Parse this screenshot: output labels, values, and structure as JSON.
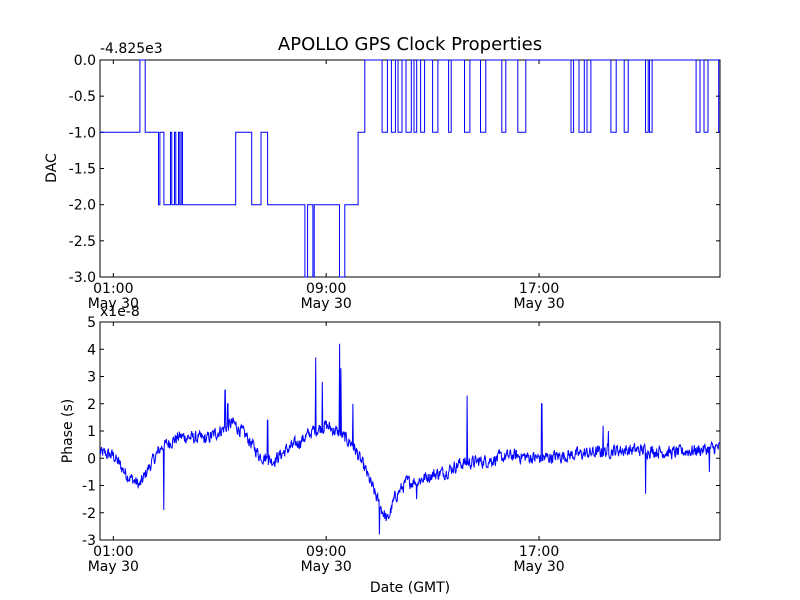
{
  "title": "APOLLO GPS Clock Properties",
  "chart_data": [
    {
      "type": "line",
      "color": "#0000ff",
      "ylabel": "DAC",
      "offset_label": "-4.825e3",
      "xlim": [
        0.5,
        23.8
      ],
      "ylim": [
        -3.0,
        0.0
      ],
      "yticks": [
        "0.0",
        "-0.5",
        "-1.0",
        "-1.5",
        "-2.0",
        "-2.5",
        "-3.0"
      ],
      "ytick_values": [
        0.0,
        -0.5,
        -1.0,
        -1.5,
        -2.0,
        -2.5,
        -3.0
      ],
      "xticks": [
        {
          "hour": 1,
          "line1": "01:00",
          "line2": "May 30"
        },
        {
          "hour": 9,
          "line1": "09:00",
          "line2": "May 30"
        },
        {
          "hour": 17,
          "line1": "17:00",
          "line2": "May 30"
        }
      ],
      "steps": [
        [
          0.5,
          -1
        ],
        [
          2.0,
          0
        ],
        [
          2.2,
          -1
        ],
        [
          2.7,
          -2
        ],
        [
          2.75,
          -1
        ],
        [
          2.9,
          -2
        ],
        [
          3.15,
          -1
        ],
        [
          3.2,
          -2
        ],
        [
          3.3,
          -1
        ],
        [
          3.35,
          -2
        ],
        [
          3.45,
          -1
        ],
        [
          3.5,
          -2
        ],
        [
          3.55,
          -1
        ],
        [
          3.6,
          -2
        ],
        [
          5.6,
          -1
        ],
        [
          6.2,
          -2
        ],
        [
          6.55,
          -1
        ],
        [
          6.8,
          -2
        ],
        [
          7.9,
          -2
        ],
        [
          8.2,
          -3
        ],
        [
          8.3,
          -2
        ],
        [
          8.5,
          -3
        ],
        [
          8.55,
          -2
        ],
        [
          8.85,
          -2
        ],
        [
          9.5,
          -3
        ],
        [
          9.7,
          -2
        ],
        [
          10.2,
          -1
        ],
        [
          10.45,
          0
        ],
        [
          11.1,
          -1
        ],
        [
          11.3,
          0
        ],
        [
          11.45,
          -1
        ],
        [
          11.6,
          0
        ],
        [
          11.7,
          -1
        ],
        [
          11.85,
          0
        ],
        [
          12.0,
          -1
        ],
        [
          12.2,
          0
        ],
        [
          12.3,
          -1
        ],
        [
          12.4,
          0
        ],
        [
          12.55,
          -1
        ],
        [
          12.7,
          0
        ],
        [
          13.0,
          -1
        ],
        [
          13.2,
          0
        ],
        [
          13.6,
          -1
        ],
        [
          13.7,
          0
        ],
        [
          14.2,
          -1
        ],
        [
          14.4,
          0
        ],
        [
          14.8,
          -1
        ],
        [
          15.0,
          0
        ],
        [
          15.6,
          -1
        ],
        [
          15.75,
          0
        ],
        [
          16.2,
          -1
        ],
        [
          16.5,
          0
        ],
        [
          18.2,
          -1
        ],
        [
          18.3,
          0
        ],
        [
          18.5,
          -1
        ],
        [
          18.7,
          0
        ],
        [
          18.8,
          -1
        ],
        [
          18.95,
          0
        ],
        [
          19.7,
          -1
        ],
        [
          19.9,
          0
        ],
        [
          20.2,
          -1
        ],
        [
          20.35,
          0
        ],
        [
          21.0,
          -1
        ],
        [
          21.1,
          0
        ],
        [
          21.15,
          -1
        ],
        [
          21.25,
          0
        ],
        [
          22.9,
          -1
        ],
        [
          23.05,
          0
        ],
        [
          23.2,
          -1
        ],
        [
          23.35,
          0
        ],
        [
          23.75,
          -1
        ],
        [
          23.8,
          -1
        ]
      ]
    },
    {
      "type": "line",
      "color": "#0000ff",
      "ylabel": "Phase (s)",
      "xlabel": "Date (GMT)",
      "offset_label": "x1e-8",
      "xlim": [
        0.5,
        23.8
      ],
      "ylim": [
        -3,
        5
      ],
      "yticks": [
        "5",
        "4",
        "3",
        "2",
        "1",
        "0",
        "-1",
        "-2",
        "-3"
      ],
      "ytick_values": [
        5,
        4,
        3,
        2,
        1,
        0,
        -1,
        -2,
        -3
      ],
      "xticks": [
        {
          "hour": 1,
          "line1": "01:00",
          "line2": "May 30"
        },
        {
          "hour": 9,
          "line1": "09:00",
          "line2": "May 30"
        },
        {
          "hour": 17,
          "line1": "17:00",
          "line2": "May 30"
        }
      ],
      "noise_amplitude": 0.35,
      "trend": [
        [
          0.5,
          0.2
        ],
        [
          1.0,
          0.1
        ],
        [
          1.5,
          -0.6
        ],
        [
          2.0,
          -1.0
        ],
        [
          2.3,
          -0.4
        ],
        [
          2.8,
          0.4
        ],
        [
          3.5,
          0.8
        ],
        [
          4.5,
          0.7
        ],
        [
          5.5,
          1.3
        ],
        [
          6.0,
          0.8
        ],
        [
          6.5,
          0.1
        ],
        [
          7.0,
          -0.1
        ],
        [
          7.5,
          0.3
        ],
        [
          8.0,
          0.6
        ],
        [
          8.5,
          1.0
        ],
        [
          9.0,
          1.2
        ],
        [
          9.5,
          0.9
        ],
        [
          10.0,
          0.5
        ],
        [
          10.5,
          -0.5
        ],
        [
          11.0,
          -1.7
        ],
        [
          11.3,
          -2.3
        ],
        [
          11.6,
          -1.4
        ],
        [
          12.0,
          -0.9
        ],
        [
          12.5,
          -0.8
        ],
        [
          13.0,
          -0.6
        ],
        [
          13.5,
          -0.5
        ],
        [
          14.0,
          -0.2
        ],
        [
          15.0,
          -0.1
        ],
        [
          16.0,
          0.1
        ],
        [
          17.0,
          0.0
        ],
        [
          18.0,
          0.1
        ],
        [
          19.0,
          0.2
        ],
        [
          20.0,
          0.3
        ],
        [
          21.0,
          0.3
        ],
        [
          22.0,
          0.2
        ],
        [
          23.0,
          0.3
        ],
        [
          23.8,
          0.4
        ]
      ],
      "spikes": [
        [
          2.9,
          -1.9
        ],
        [
          4.2,
          0.8
        ],
        [
          5.2,
          2.5
        ],
        [
          5.3,
          2.0
        ],
        [
          6.8,
          1.4
        ],
        [
          8.6,
          3.7
        ],
        [
          8.85,
          2.8
        ],
        [
          9.5,
          4.2
        ],
        [
          9.55,
          3.3
        ],
        [
          10.0,
          2.0
        ],
        [
          11.0,
          -2.8
        ],
        [
          12.4,
          -1.5
        ],
        [
          14.3,
          2.3
        ],
        [
          17.1,
          2.0
        ],
        [
          19.4,
          1.2
        ],
        [
          19.6,
          1.0
        ],
        [
          21.0,
          -1.3
        ],
        [
          23.4,
          -0.5
        ]
      ]
    }
  ]
}
